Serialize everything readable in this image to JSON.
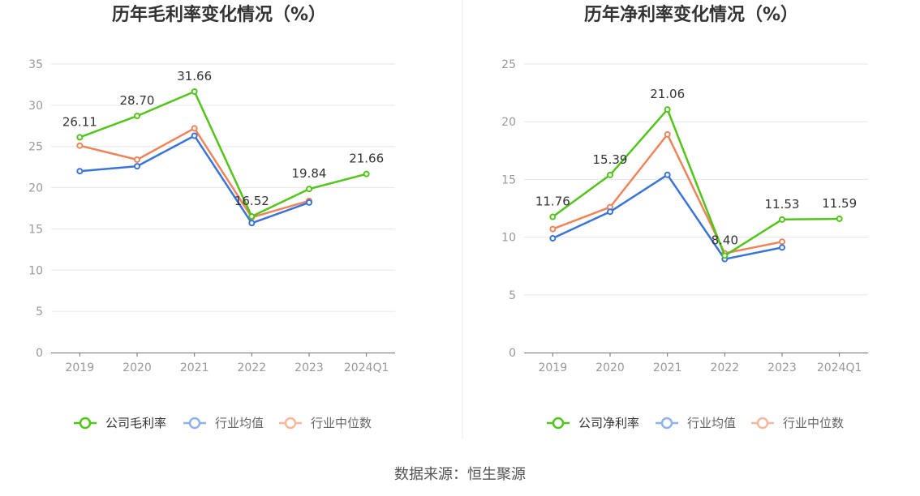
{
  "source_note": "数据来源：恒生聚源",
  "chart_data": [
    {
      "type": "line",
      "title": "历年毛利率变化情况（%）",
      "categories": [
        "2019",
        "2020",
        "2021",
        "2022",
        "2023",
        "2024Q1"
      ],
      "ylim": [
        0,
        35
      ],
      "yticks": [
        0,
        5,
        10,
        15,
        20,
        25,
        30,
        35
      ],
      "grid": true,
      "legend": "bottom",
      "series": [
        {
          "name": "公司毛利率",
          "color": "#52c41a",
          "legend_color": "#52c41a",
          "values": [
            26.11,
            28.7,
            31.66,
            16.52,
            19.84,
            21.66
          ],
          "data_labels": [
            "26.11",
            "28.70",
            "31.66",
            "16.52",
            "19.84",
            "21.66"
          ]
        },
        {
          "name": "行业均值",
          "color": "#3a74d9",
          "legend_color": "#8fb1ee",
          "values": [
            22.0,
            22.6,
            26.3,
            15.7,
            18.2,
            null
          ]
        },
        {
          "name": "行业中位数",
          "color": "#ef845b",
          "legend_color": "#f6b79d",
          "values": [
            25.1,
            23.4,
            27.2,
            16.4,
            18.4,
            null
          ]
        }
      ]
    },
    {
      "type": "line",
      "title": "历年净利率变化情况（%）",
      "categories": [
        "2019",
        "2020",
        "2021",
        "2022",
        "2023",
        "2024Q1"
      ],
      "ylim": [
        0,
        25
      ],
      "yticks": [
        0,
        5,
        10,
        15,
        20,
        25
      ],
      "grid": true,
      "legend": "bottom",
      "series": [
        {
          "name": "公司净利率",
          "color": "#52c41a",
          "legend_color": "#52c41a",
          "values": [
            11.76,
            15.39,
            21.06,
            8.4,
            11.53,
            11.59
          ],
          "data_labels": [
            "11.76",
            "15.39",
            "21.06",
            "8.40",
            "11.53",
            "11.59"
          ]
        },
        {
          "name": "行业均值",
          "color": "#3a74d9",
          "legend_color": "#8fb1ee",
          "values": [
            9.9,
            12.2,
            15.4,
            8.1,
            9.1,
            null
          ]
        },
        {
          "name": "行业中位数",
          "color": "#ef845b",
          "legend_color": "#f6b79d",
          "values": [
            10.7,
            12.6,
            18.9,
            8.6,
            9.6,
            null
          ]
        }
      ]
    }
  ]
}
